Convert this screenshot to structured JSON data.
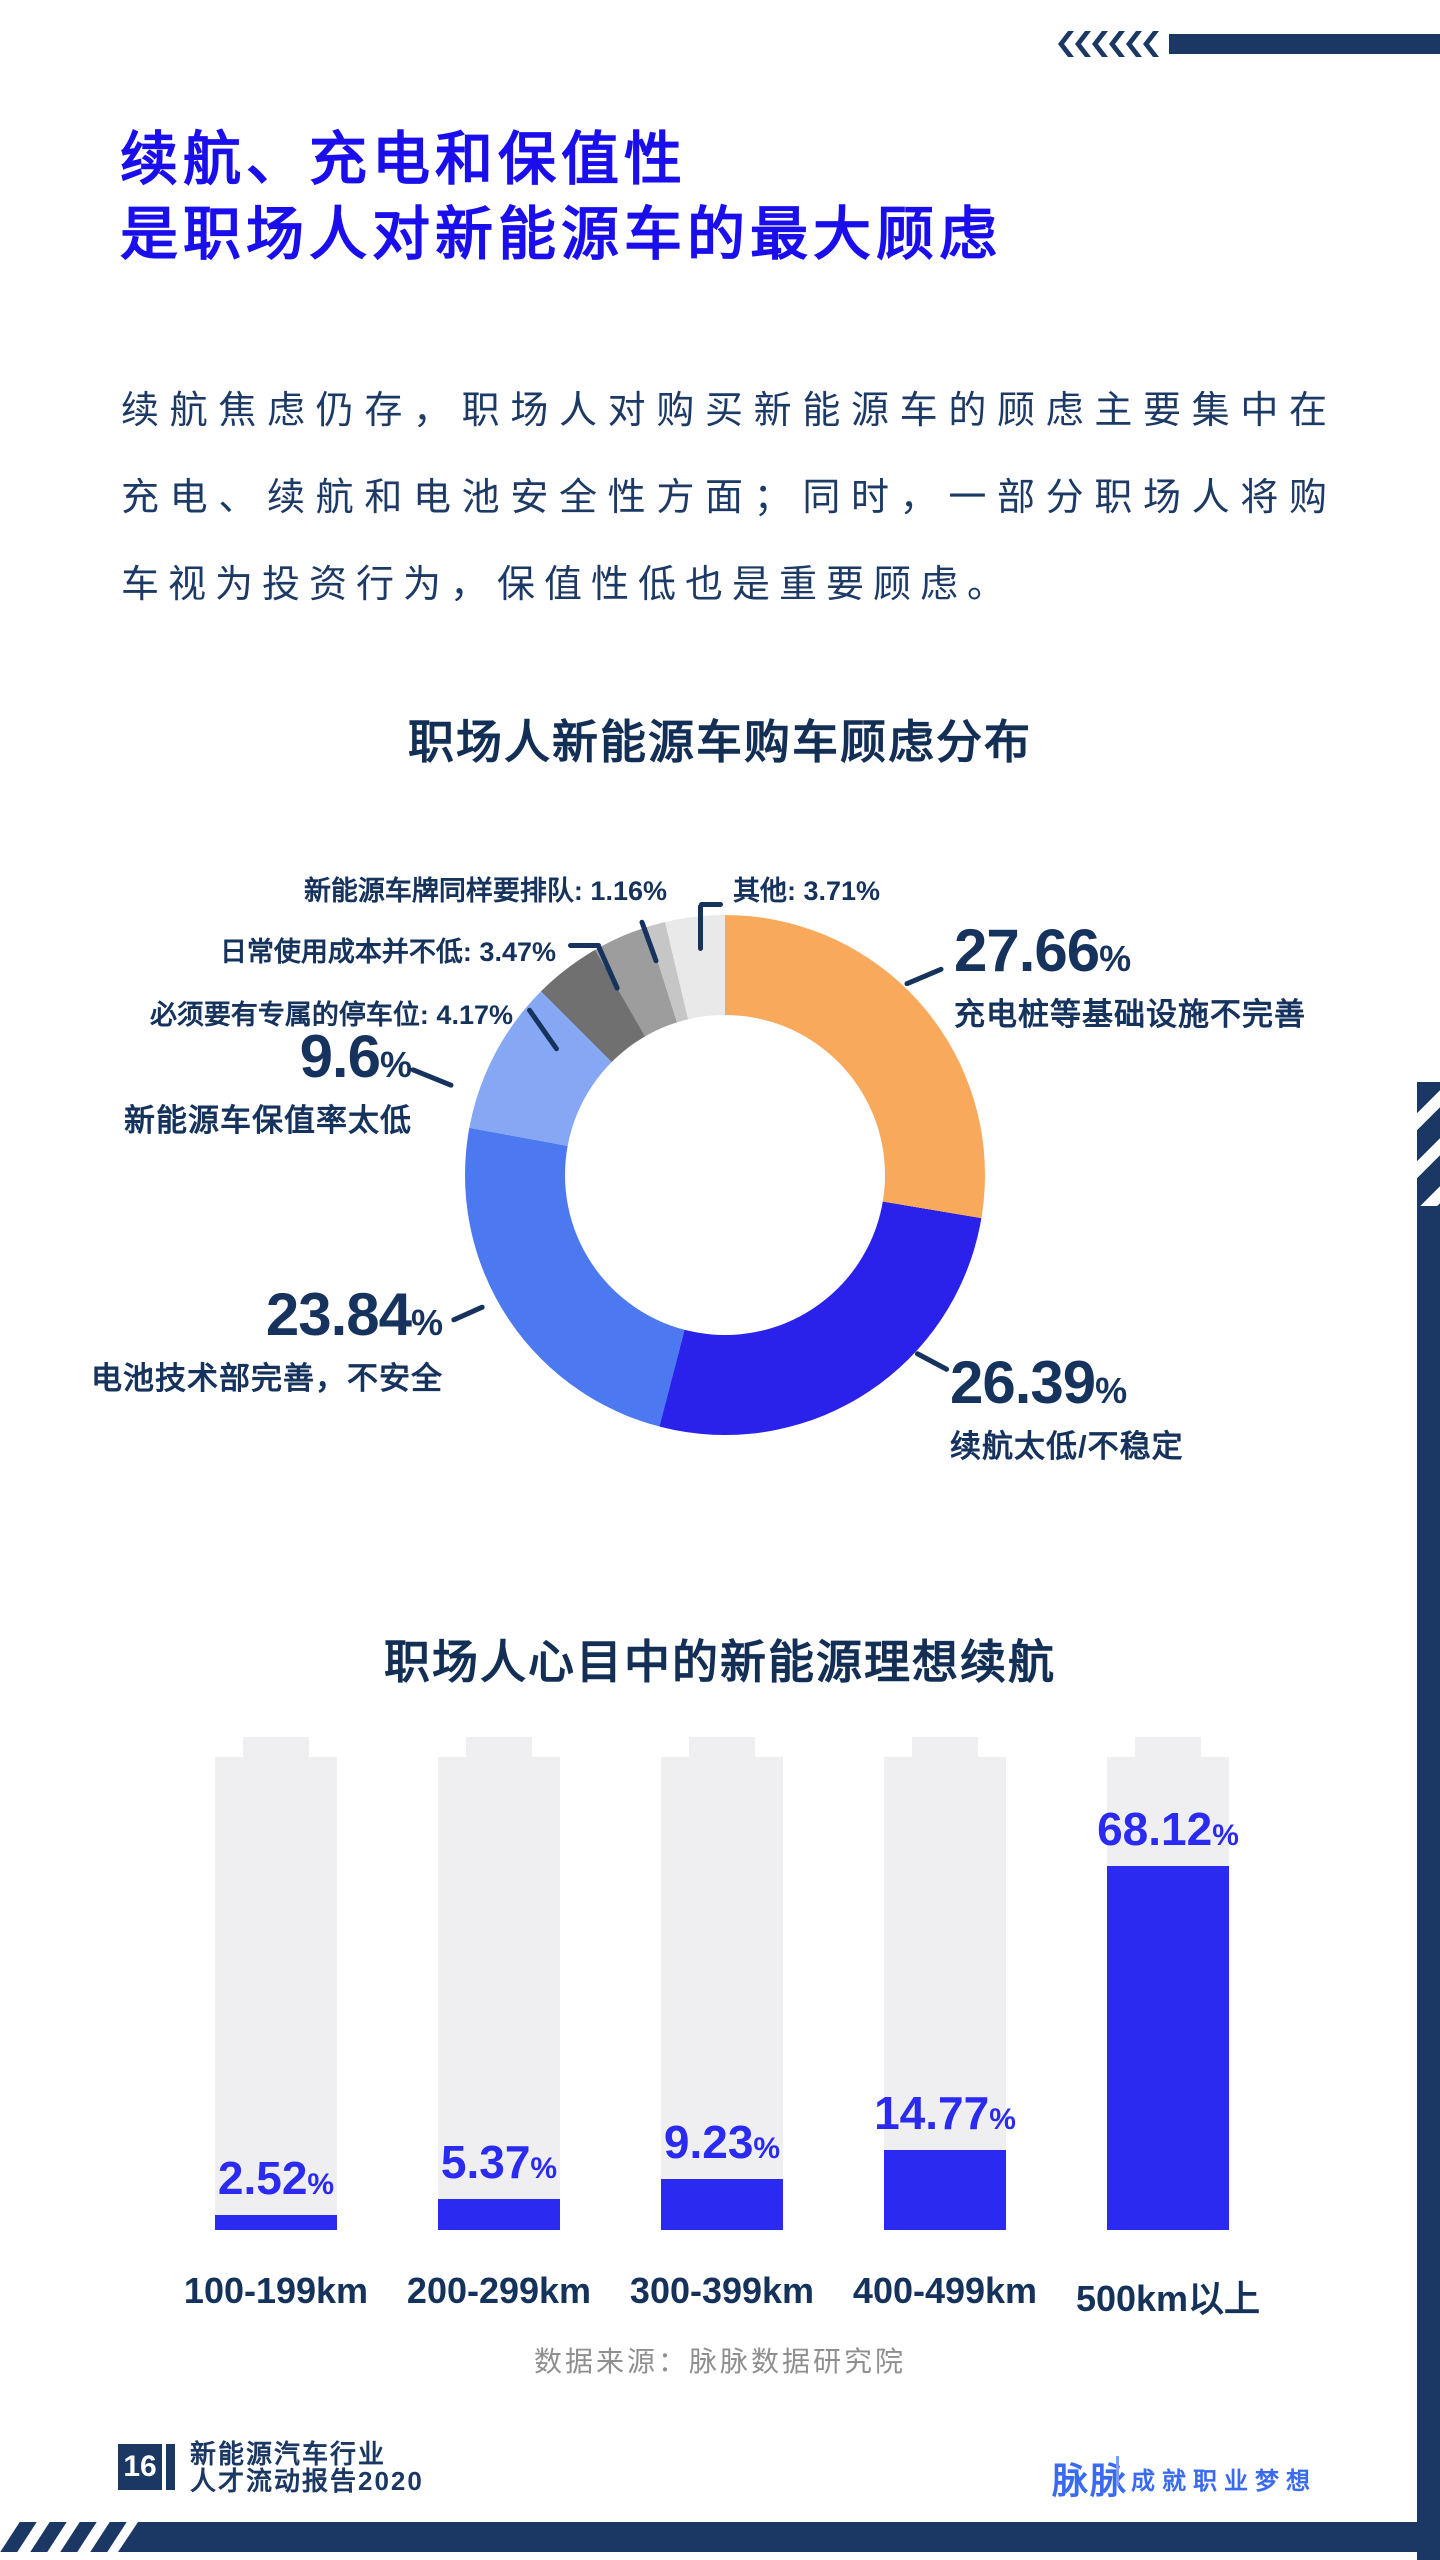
{
  "page": {
    "title": {
      "line1": "续航、充电和保值性",
      "line2": "是职场人对新能源车的最大顾虑"
    },
    "intro": "续航焦虑仍存，职场人对购买新能源车的顾虑主要集中在充电、续航和电池安全性方面；同时，一部分职场人将购车视为投资行为，保值性低也是重要顾虑。",
    "source_note": "数据来源：脉脉数据研究院"
  },
  "colors": {
    "title_blue": "#1A0FEC",
    "navy_text": "#16335E",
    "bar_blue": "#2A2AF0",
    "brand_blue": "#3A6AF0",
    "deco_navy": "#1B3763",
    "battery_gray": "#EFEFF1",
    "source_gray": "#8F8F8F"
  },
  "icons": {
    "top_right": "chevrons-left-icon",
    "edges": "diagonal-stripes-decoration"
  },
  "chart_data": [
    {
      "type": "pie",
      "variant": "donut",
      "title": "职场人新能源车购车顾虑分布",
      "legend_position": "callout-labels",
      "start_angle_deg": 0,
      "slices": [
        {
          "label": "充电桩等基础设施不完善",
          "value": 27.66,
          "number": "27.66",
          "unit": "%",
          "color": "#F9A95B"
        },
        {
          "label": "续航太低/不稳定",
          "value": 26.39,
          "number": "26.39",
          "unit": "%",
          "color": "#2A22EA"
        },
        {
          "label": "电池技术部完善，不安全",
          "value": 23.84,
          "number": "23.84",
          "unit": "%",
          "color": "#4C79F0"
        },
        {
          "label": "新能源车保值率太低",
          "value": 9.6,
          "number": "9.6",
          "unit": "%",
          "color": "#86A8F4"
        },
        {
          "label": "必须要有专属的停车位",
          "value": 4.17,
          "text": "必须要有专属的停车位: 4.17%",
          "color": "#707070"
        },
        {
          "label": "日常使用成本并不低",
          "value": 3.47,
          "text": "日常使用成本并不低: 3.47%",
          "color": "#9D9D9D"
        },
        {
          "label": "新能源车牌同样要排队",
          "value": 1.16,
          "text": "新能源车牌同样要排队: 1.16%",
          "color": "#C6C6C6"
        },
        {
          "label": "其他",
          "value": 3.71,
          "text": "其他: 3.71%",
          "color": "#E9E9E9"
        }
      ]
    },
    {
      "type": "bar",
      "title": "职场人心目中的新能源理想续航",
      "style": "battery-columns",
      "categories": [
        "100-199km",
        "200-299km",
        "300-399km",
        "400-499km",
        "500km以上"
      ],
      "values": [
        2.52,
        5.37,
        9.23,
        14.77,
        68.12
      ],
      "value_labels": [
        "2.52",
        "5.37",
        "9.23",
        "14.77",
        "68.12"
      ],
      "unit": "%",
      "ylim": [
        0,
        100
      ],
      "grid": false
    }
  ],
  "footer": {
    "page_number": "16",
    "report_title_line1": "新能源汽车行业",
    "report_title_line2": "人才流动报告2020",
    "brand": "脉脉",
    "slogan": "成就职业梦想"
  }
}
